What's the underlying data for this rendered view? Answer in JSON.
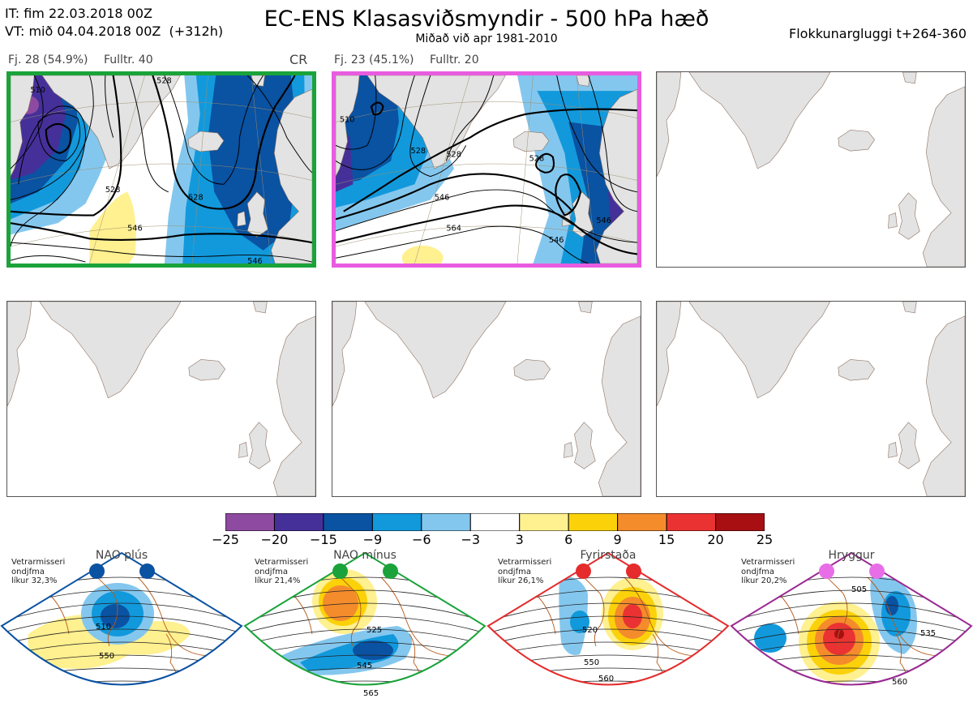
{
  "header": {
    "issue_time": "IT: fim 22.03.2018 00Z",
    "valid_time": "VT: mið 04.04.2018 00Z  (+312h)",
    "title": "EC-ENS Klasasviðsmyndir - 500 hPa hæð",
    "subtitle": "Miðað við apr 1981-2010",
    "window": "Flokkunargluggi t+264-360"
  },
  "clusters": [
    {
      "count_label": "Fj. 28 (54.9%)",
      "rep_label": "Fulltr. 40",
      "regime_code": "CR",
      "border_color": "#1aa33a",
      "contour_labels": [
        "510",
        "528",
        "528",
        "546",
        "546",
        "528"
      ]
    },
    {
      "count_label": "Fj. 23 (45.1%)",
      "rep_label": "Fulltr. 20",
      "border_color": "#e85ce0",
      "contour_labels": [
        "528",
        "528",
        "528",
        "546",
        "564",
        "546",
        "546",
        "510"
      ]
    }
  ],
  "empty_panels": 4,
  "colorbar": {
    "ticks": [
      "−25",
      "−20",
      "−15",
      "−9",
      "−6",
      "−3",
      "3",
      "6",
      "9",
      "15",
      "20",
      "25"
    ],
    "colors": [
      "#8e4aa0",
      "#45309a",
      "#0a52a2",
      "#1299dc",
      "#84c7ee",
      "#ffffff",
      "#fff090",
      "#fbd20a",
      "#f48c2c",
      "#eb3232",
      "#a80f12"
    ]
  },
  "regimes": [
    {
      "name": "NAO plús",
      "prob_label": "Vetrarmisseri\nondjfma\nlíkur 32,3%",
      "color": "#0a52a2",
      "contour_labels": [
        "510",
        "550"
      ]
    },
    {
      "name": "NAO mínus",
      "prob_label": "Vetrarmisseri\nondjfma\nlíkur 21,4%",
      "color": "#1aa33a",
      "contour_labels": [
        "525",
        "545",
        "565"
      ]
    },
    {
      "name": "Fyrirstaða",
      "prob_label": "Vetrarmisseri\nondjfma\nlíkur 26,1%",
      "color": "#e52b2b",
      "contour_labels": [
        "520",
        "550",
        "560"
      ]
    },
    {
      "name": "Hryggur",
      "prob_label": "Vetrarmisseri\nondjfma\nlíkur 20,2%",
      "color": "#9a2a93",
      "dot_color": "#e86ee8",
      "contour_labels": [
        "505",
        "535",
        "560"
      ]
    }
  ],
  "icons": [
    "map-land-greenland",
    "map-land-iceland",
    "map-land-scandinavia",
    "map-land-british-isles"
  ]
}
